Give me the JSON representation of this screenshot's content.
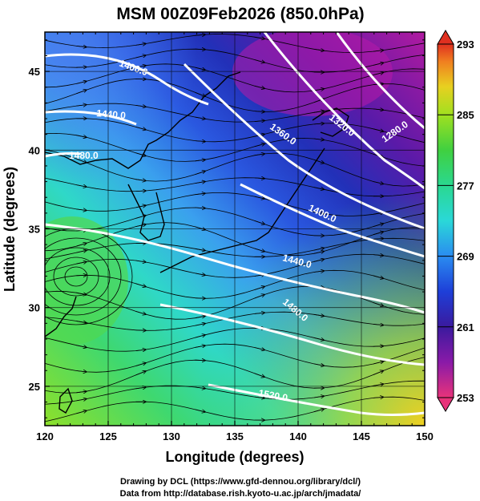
{
  "title": "MSM 00Z09Feb2026 (850.0hPa)",
  "x_axis": {
    "label": "Longitude (degrees)",
    "range": [
      120,
      150
    ],
    "ticks": [
      "120",
      "125",
      "130",
      "135",
      "140",
      "145",
      "150"
    ]
  },
  "y_axis": {
    "label": "Latitude  (degrees)",
    "range": [
      22.5,
      47.5
    ],
    "ticks": [
      "25",
      "30",
      "35",
      "40",
      "45"
    ]
  },
  "colorbar": {
    "ticks": [
      "293",
      "285",
      "277",
      "269",
      "261",
      "253"
    ],
    "range": [
      253,
      293
    ],
    "colors": [
      "#e8337a",
      "#8a1aa8",
      "#3a1a9e",
      "#1e3fd8",
      "#2a8cf0",
      "#2ad8d8",
      "#2ad890",
      "#40d040",
      "#a0e020",
      "#e8d020",
      "#f08020",
      "#e03020"
    ]
  },
  "contours": [
    {
      "label": "1280.0"
    },
    {
      "label": "1320.0"
    },
    {
      "label": "1360.0"
    },
    {
      "label": "1400.0"
    },
    {
      "label": "1400.0"
    },
    {
      "label": "1440.0"
    },
    {
      "label": "1440.0"
    },
    {
      "label": "1480.0"
    },
    {
      "label": "1480.0"
    },
    {
      "label": "1520.0"
    }
  ],
  "footer": {
    "line1": "Drawing by DCL (https://www.gfd-dennou.org/library/dcl/)",
    "line2": "Data from http://database.rish.kyoto-u.ac.jp/arch/jmadata/"
  }
}
